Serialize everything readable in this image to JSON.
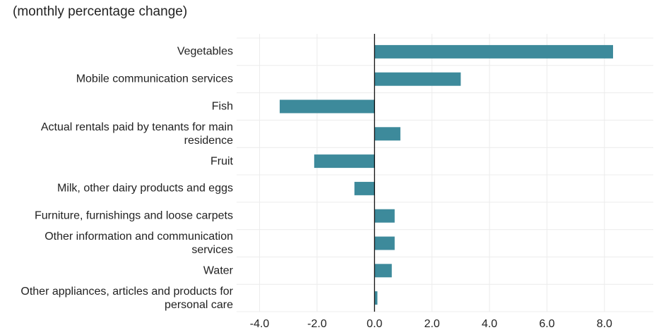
{
  "chart_data": {
    "type": "barh",
    "title": "(monthly percentage change)",
    "categories": [
      "Vegetables",
      "Mobile communication services",
      "Fish",
      "Actual rentals paid by tenants for main residence",
      "Fruit",
      "Milk, other dairy products and eggs",
      "Furniture, furnishings and loose carpets",
      "Other information and communication services",
      "Water",
      "Other appliances, articles and products for personal care"
    ],
    "values": [
      8.3,
      3.0,
      -3.3,
      0.9,
      -2.1,
      -0.7,
      0.7,
      0.7,
      0.6,
      0.1
    ],
    "color": "#3d8a9b",
    "xlim": [
      -4.8,
      9.7
    ],
    "xticks": [
      {
        "value": -4,
        "label": "-4.0"
      },
      {
        "value": -2,
        "label": "-2.0"
      },
      {
        "value": 0,
        "label": "0.0"
      },
      {
        "value": 2,
        "label": "2.0"
      },
      {
        "value": 4,
        "label": "4.0"
      },
      {
        "value": 6,
        "label": "6.0"
      },
      {
        "value": 8,
        "label": "8.0"
      }
    ],
    "grid": true
  }
}
